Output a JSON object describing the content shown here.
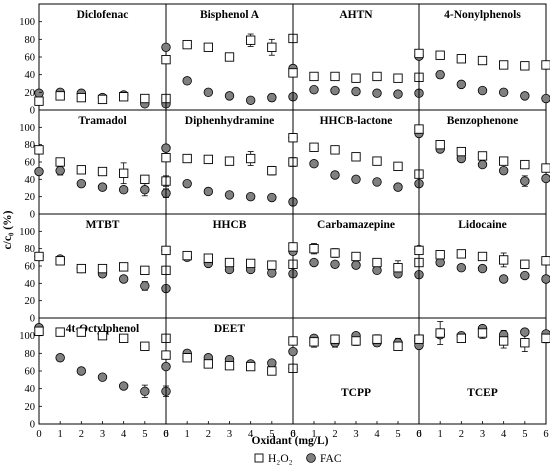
{
  "chart_data": {
    "type": "scatter",
    "layout": "4x4 small multiples",
    "x": [
      0,
      1,
      2,
      3,
      4,
      5,
      6
    ],
    "xlabel": "Oxidant (mg/L)",
    "ylabel": "c/c₀ (%)",
    "ylim": [
      0,
      120
    ],
    "xlim": [
      0,
      6
    ],
    "yticks": [
      0,
      20,
      40,
      60,
      80,
      100
    ],
    "legend": {
      "placement": "bottom-center",
      "entries": [
        {
          "label": "H₂O₂",
          "marker": "open-square"
        },
        {
          "label": "FAC",
          "marker": "filled-circle"
        }
      ]
    },
    "colors": {
      "h2o2_fill": "#ffffff",
      "fac_fill": "#808080",
      "edge": "#000000"
    },
    "panels": [
      {
        "title": "Diclofenac",
        "series": [
          {
            "name": "H₂O₂",
            "values": [
              10,
              16,
              14,
              12,
              15,
              13,
              13
            ],
            "err": [
              1,
              2,
              1,
              1,
              1,
              1,
              1
            ]
          },
          {
            "name": "FAC",
            "values": [
              19,
              20,
              19,
              14,
              17,
              7,
              7
            ],
            "err": [
              1,
              1,
              1,
              1,
              1,
              1,
              1
            ]
          }
        ]
      },
      {
        "title": "Bisphenol A",
        "series": [
          {
            "name": "H₂O₂",
            "values": [
              57,
              74,
              71,
              60,
              79,
              71,
              81
            ],
            "err": [
              2,
              2,
              2,
              2,
              7,
              9,
              3
            ]
          },
          {
            "name": "FAC",
            "values": [
              71,
              33,
              20,
              16,
              11,
              14,
              15
            ],
            "err": [
              2,
              2,
              1,
              1,
              1,
              4,
              1
            ]
          }
        ]
      },
      {
        "title": "AHTN",
        "series": [
          {
            "name": "H₂O₂",
            "values": [
              42,
              38,
              38,
              36,
              38,
              36,
              37
            ],
            "err": [
              1,
              1,
              1,
              1,
              1,
              1,
              1
            ]
          },
          {
            "name": "FAC",
            "values": [
              47,
              23,
              22,
              21,
              19,
              18,
              19
            ],
            "err": [
              1,
              1,
              1,
              1,
              1,
              1,
              1
            ]
          }
        ]
      },
      {
        "title": "4-Nonylphenols",
        "series": [
          {
            "name": "H₂O₂",
            "values": [
              64,
              62,
              58,
              56,
              51,
              50,
              51
            ],
            "err": [
              2,
              4,
              2,
              2,
              2,
              2,
              2
            ]
          },
          {
            "name": "FAC",
            "values": [
              61,
              40,
              29,
              22,
              20,
              16,
              13
            ],
            "err": [
              2,
              4,
              2,
              1,
              1,
              1,
              1
            ]
          }
        ]
      },
      {
        "title": "Tramadol",
        "series": [
          {
            "name": "H₂O₂",
            "values": [
              74,
              60,
              51,
              49,
              47,
              40,
              38
            ],
            "err": [
              3,
              3,
              3,
              2,
              12,
              2,
              6
            ]
          },
          {
            "name": "FAC",
            "values": [
              49,
              50,
              35,
              31,
              28,
              28,
              24
            ],
            "err": [
              2,
              5,
              3,
              2,
              2,
              7,
              5
            ]
          }
        ]
      },
      {
        "title": "Diphenhydramine",
        "series": [
          {
            "name": "H₂O₂",
            "values": [
              65,
              64,
              63,
              61,
              64,
              50,
              60
            ],
            "err": [
              2,
              2,
              2,
              2,
              8,
              5,
              5
            ]
          },
          {
            "name": "FAC",
            "values": [
              76,
              35,
              26,
              22,
              20,
              19,
              14
            ],
            "err": [
              2,
              2,
              1,
              1,
              1,
              1,
              1
            ]
          }
        ]
      },
      {
        "title": "HHCB-lactone",
        "series": [
          {
            "name": "H₂O₂",
            "values": [
              88,
              77,
              74,
              66,
              61,
              55,
              46
            ],
            "err": [
              2,
              2,
              2,
              2,
              4,
              2,
              2
            ]
          },
          {
            "name": "FAC",
            "values": [
              88,
              58,
              45,
              40,
              37,
              31,
              35
            ],
            "err": [
              2,
              2,
              2,
              2,
              2,
              2,
              2
            ]
          }
        ]
      },
      {
        "title": "Benzophenone",
        "series": [
          {
            "name": "H₂O₂",
            "values": [
              98,
              80,
              72,
              67,
              61,
              57,
              53
            ],
            "err": [
              2,
              3,
              2,
              2,
              2,
              2,
              2
            ]
          },
          {
            "name": "FAC",
            "values": [
              93,
              75,
              64,
              57,
              50,
              38,
              41
            ],
            "err": [
              2,
              2,
              2,
              2,
              3,
              6,
              2
            ]
          }
        ]
      },
      {
        "title": "MTBT",
        "series": [
          {
            "name": "H₂O₂",
            "values": [
              71,
              66,
              57,
              57,
              59,
              55,
              55
            ],
            "err": [
              2,
              2,
              2,
              2,
              2,
              2,
              2
            ]
          },
          {
            "name": "FAC",
            "values": [
              71,
              68,
              57,
              51,
              45,
              37,
              34
            ],
            "err": [
              2,
              2,
              3,
              2,
              2,
              5,
              2
            ]
          }
        ]
      },
      {
        "title": "HHCB",
        "series": [
          {
            "name": "H₂O₂",
            "values": [
              78,
              72,
              69,
              64,
              63,
              61,
              62
            ],
            "err": [
              2,
              2,
              2,
              2,
              2,
              2,
              2
            ]
          },
          {
            "name": "FAC",
            "values": [
              78,
              70,
              63,
              56,
              56,
              52,
              51
            ],
            "err": [
              2,
              2,
              2,
              2,
              2,
              2,
              2
            ]
          }
        ]
      },
      {
        "title": "Carbamazepine",
        "series": [
          {
            "name": "H₂O₂",
            "values": [
              82,
              80,
              75,
              71,
              64,
              58,
              64
            ],
            "err": [
              2,
              6,
              5,
              2,
              2,
              8,
              2
            ]
          },
          {
            "name": "FAC",
            "values": [
              77,
              64,
              62,
              61,
              55,
              51,
              50
            ],
            "err": [
              2,
              2,
              2,
              2,
              2,
              2,
              2
            ]
          }
        ]
      },
      {
        "title": "Lidocaine",
        "series": [
          {
            "name": "H₂O₂",
            "values": [
              78,
              73,
              74,
              71,
              67,
              62,
              66
            ],
            "err": [
              2,
              2,
              2,
              2,
              8,
              2,
              2
            ]
          },
          {
            "name": "FAC",
            "values": [
              79,
              64,
              58,
              57,
              45,
              49,
              45
            ],
            "err": [
              2,
              2,
              2,
              2,
              2,
              2,
              2
            ]
          }
        ]
      },
      {
        "title": "4t-Octylphenol",
        "series": [
          {
            "name": "H₂O₂",
            "values": [
              105,
              104,
              104,
              100,
              97,
              88,
              97
            ],
            "err": [
              2,
              2,
              2,
              2,
              2,
              2,
              2
            ]
          },
          {
            "name": "FAC",
            "values": [
              109,
              75,
              60,
              53,
              43,
              37,
              37
            ],
            "err": [
              2,
              3,
              2,
              2,
              3,
              7,
              6
            ]
          }
        ]
      },
      {
        "title": "DEET",
        "series": [
          {
            "name": "H₂O₂",
            "values": [
              78,
              75,
              68,
              66,
              65,
              60,
              63
            ],
            "err": [
              2,
              2,
              2,
              2,
              2,
              2,
              2
            ]
          },
          {
            "name": "FAC",
            "values": [
              65,
              80,
              75,
              73,
              68,
              69,
              63
            ],
            "err": [
              2,
              2,
              2,
              2,
              2,
              2,
              2
            ]
          }
        ]
      },
      {
        "title": "TCPP",
        "series": [
          {
            "name": "H₂O₂",
            "values": [
              94,
              93,
              96,
              94,
              96,
              88,
              96
            ],
            "err": [
              2,
              6,
              2,
              5,
              5,
              2,
              2
            ]
          },
          {
            "name": "FAC",
            "values": [
              82,
              97,
              92,
              100,
              92,
              92,
              94
            ],
            "err": [
              2,
              2,
              5,
              2,
              4,
              5,
              2
            ]
          }
        ]
      },
      {
        "title": "TCEP",
        "series": [
          {
            "name": "H₂O₂",
            "values": [
              96,
              103,
              97,
              103,
              94,
              92,
              97
            ],
            "err": [
              2,
              13,
              3,
              6,
              8,
              10,
              5
            ]
          },
          {
            "name": "FAC",
            "values": [
              89,
              101,
              100,
              108,
              101,
              104,
              102
            ],
            "err": [
              2,
              3,
              2,
              2,
              5,
              2,
              2
            ]
          }
        ]
      }
    ]
  }
}
